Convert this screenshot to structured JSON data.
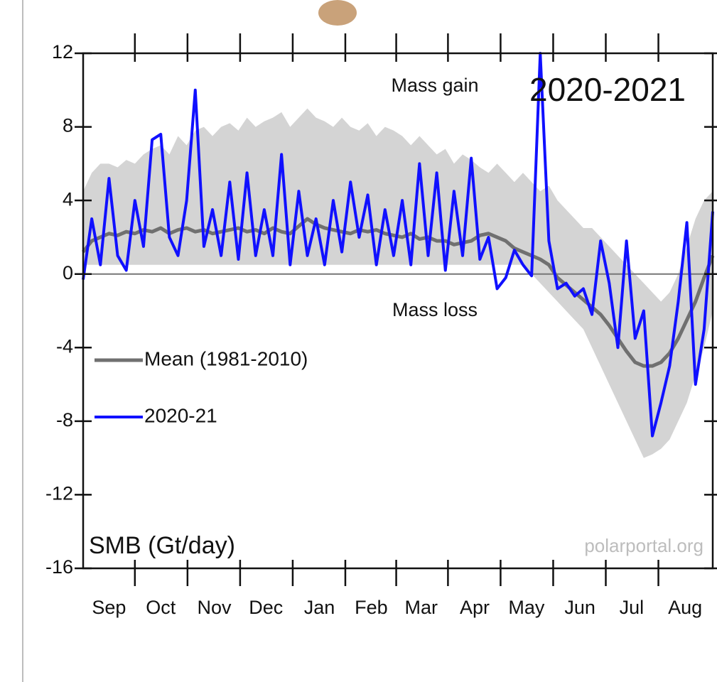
{
  "chart_data": {
    "type": "line",
    "title": "2020-2021",
    "annotations": {
      "gain": "Mass gain",
      "loss": "Mass loss",
      "unit": "SMB (Gt/day)",
      "source": "polarportal.org"
    },
    "x": [
      0,
      5,
      10,
      15,
      20,
      25,
      30,
      35,
      40,
      45,
      50,
      55,
      60,
      65,
      70,
      75,
      80,
      85,
      90,
      95,
      100,
      105,
      110,
      115,
      120,
      125,
      130,
      135,
      140,
      145,
      150,
      155,
      160,
      165,
      170,
      175,
      180,
      185,
      190,
      195,
      200,
      205,
      210,
      215,
      220,
      225,
      230,
      235,
      240,
      245,
      250,
      255,
      260,
      265,
      270,
      275,
      280,
      285,
      290,
      295,
      300,
      305,
      310,
      315,
      320,
      325,
      330,
      335,
      340,
      345,
      350,
      355,
      360,
      365
    ],
    "xlim": [
      0,
      365
    ],
    "xticks": [
      {
        "value": 15,
        "label": "Sep"
      },
      {
        "value": 45,
        "label": "Oct"
      },
      {
        "value": 76,
        "label": "Nov"
      },
      {
        "value": 106,
        "label": "Dec"
      },
      {
        "value": 137,
        "label": "Jan"
      },
      {
        "value": 167,
        "label": "Feb"
      },
      {
        "value": 196,
        "label": "Mar"
      },
      {
        "value": 227,
        "label": "Apr"
      },
      {
        "value": 257,
        "label": "May"
      },
      {
        "value": 288,
        "label": "Jun"
      },
      {
        "value": 318,
        "label": "Jul"
      },
      {
        "value": 349,
        "label": "Aug"
      }
    ],
    "ylim": [
      -16,
      12
    ],
    "yticks": [
      12,
      8,
      4,
      0,
      -4,
      -8,
      -12,
      -16
    ],
    "zero_line": true,
    "legend": "left",
    "band": {
      "color": "#d4d4d4",
      "upper": [
        4.5,
        5.5,
        6,
        6,
        5.8,
        6.2,
        6,
        6.5,
        6.8,
        7,
        6.5,
        7.5,
        7,
        7.8,
        8,
        7.5,
        8,
        8.2,
        7.8,
        8.5,
        8,
        8.3,
        8.5,
        8.8,
        8,
        8.5,
        9,
        8.5,
        8.3,
        8,
        8.5,
        8,
        7.8,
        8.2,
        7.5,
        8,
        7.8,
        7.5,
        7,
        7.5,
        7,
        6.5,
        6.8,
        6,
        6.5,
        6.2,
        5.8,
        5.5,
        6,
        5.5,
        5,
        5.5,
        5,
        4.5,
        4.8,
        4,
        3.5,
        3,
        2.5,
        2.5,
        2,
        1.5,
        1,
        0.5,
        0,
        -0.5,
        -1,
        -1.5,
        -1,
        0,
        1.5,
        3,
        4,
        4.5
      ],
      "lower": [
        0.5,
        0.5,
        0.5,
        0.5,
        0.5,
        0.5,
        0.5,
        0.5,
        0.5,
        0.5,
        0.5,
        0.5,
        0.5,
        0.5,
        0.5,
        0.5,
        0.5,
        0.5,
        0.5,
        0.5,
        0.5,
        0.5,
        0.5,
        0.5,
        0.5,
        0.5,
        0.5,
        0.5,
        0.5,
        0.5,
        0.5,
        0.5,
        0.5,
        0.5,
        0.5,
        0.5,
        0.5,
        0.5,
        0.5,
        0.5,
        0.5,
        0.5,
        0.5,
        0.5,
        0.5,
        0.5,
        0.5,
        0.5,
        0.5,
        0.5,
        0.5,
        0.5,
        0,
        -0.5,
        -1,
        -1.5,
        -2,
        -2.5,
        -3,
        -4,
        -5,
        -6,
        -7,
        -8,
        -9,
        -10,
        -9.8,
        -9.5,
        -9,
        -8,
        -7,
        -5.5,
        -4,
        -2
      ]
    },
    "series": [
      {
        "name": "Mean (1981-2010)",
        "color": "#707070",
        "width": 5,
        "values": [
          1.2,
          1.8,
          2,
          2.2,
          2.1,
          2.3,
          2.2,
          2.4,
          2.3,
          2.5,
          2.2,
          2.4,
          2.5,
          2.3,
          2.4,
          2.2,
          2.3,
          2.4,
          2.5,
          2.3,
          2.4,
          2.2,
          2.5,
          2.3,
          2.2,
          2.6,
          3.0,
          2.7,
          2.5,
          2.4,
          2.3,
          2.2,
          2.4,
          2.3,
          2.4,
          2.2,
          2.1,
          2.0,
          2.2,
          1.9,
          2.0,
          1.8,
          1.8,
          1.6,
          1.7,
          1.8,
          2.1,
          2.2,
          2.0,
          1.8,
          1.4,
          1.2,
          1.0,
          0.8,
          0.5,
          -0.2,
          -0.6,
          -1.0,
          -1.4,
          -1.8,
          -2.2,
          -2.8,
          -3.5,
          -4.2,
          -4.8,
          -5.0,
          -5.0,
          -4.8,
          -4.3,
          -3.5,
          -2.5,
          -1.5,
          -0.2,
          1.0
        ]
      },
      {
        "name": "2020-21",
        "color": "#1010ff",
        "width": 4,
        "values": [
          -0.3,
          3,
          0.5,
          5.2,
          1,
          0.2,
          4,
          1.5,
          7.3,
          7.6,
          2,
          1,
          4,
          10,
          1.5,
          3.5,
          1,
          5,
          0.8,
          5.5,
          1,
          3.5,
          1,
          6.5,
          0.5,
          4.5,
          1,
          3,
          0.5,
          4,
          1.2,
          5,
          2,
          4.3,
          0.5,
          3.5,
          1,
          4,
          0.5,
          6,
          1,
          5.5,
          0.2,
          4.5,
          1,
          6.3,
          0.8,
          2,
          -0.8,
          -0.2,
          1.3,
          0.5,
          -0.1,
          12,
          1.8,
          -0.8,
          -0.5,
          -1.2,
          -0.8,
          -2.2,
          1.8,
          -0.5,
          -4,
          1.8,
          -3.5,
          -2,
          -8.8,
          -7,
          -5,
          -1.5,
          2.8,
          -6,
          -3,
          3.4
        ]
      }
    ]
  }
}
